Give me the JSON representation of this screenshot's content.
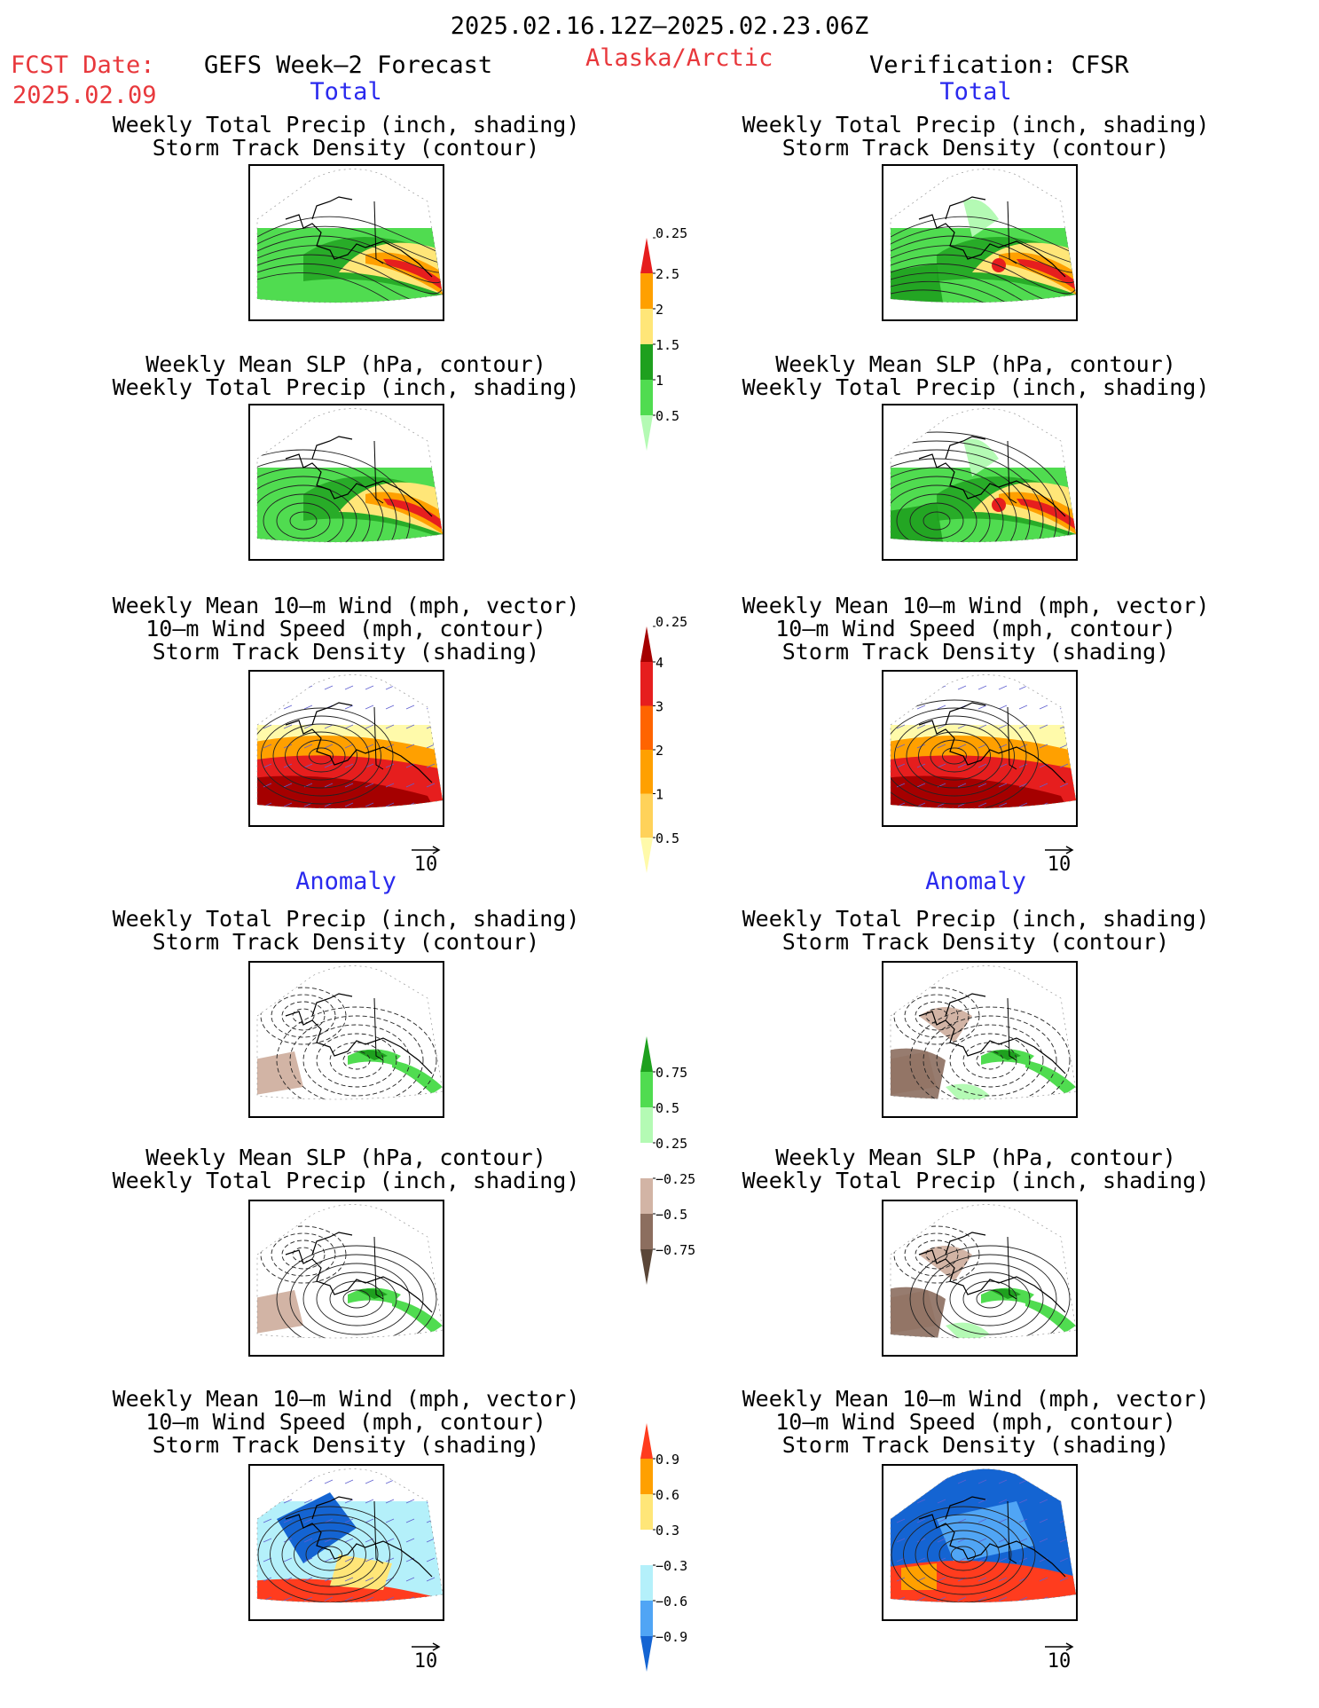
{
  "header": {
    "date_range": "2025.02.16.12Z–2025.02.23.06Z",
    "fcst_label": "FCST Date:",
    "fcst_date": "2025.02.09",
    "model": "GEFS Week–2 Forecast",
    "region": "Alaska/Arctic",
    "verification": "Verification: CFSR"
  },
  "sections": {
    "total": "Total",
    "anomaly": "Anomaly"
  },
  "panel_titles": {
    "precip_storm": [
      "Weekly Total Precip (inch, shading)",
      "Storm Track Density (contour)"
    ],
    "slp_precip": [
      "Weekly Mean SLP (hPa, contour)",
      "Weekly Total Precip (inch, shading)"
    ],
    "wind_storm": [
      "Weekly Mean 10–m Wind (mph, vector)",
      "10–m Wind Speed (mph, contour)",
      "Storm Track Density (shading)"
    ]
  },
  "vector_reference": "10",
  "colors": {
    "precip_total": [
      "#b4fab4",
      "#50dc50",
      "#1ea01e",
      "#ffe678",
      "#ffa000",
      "#e61e1e"
    ],
    "storm_total": [
      "#fffaaa",
      "#ffd25a",
      "#ffa000",
      "#ff6400",
      "#e61e1e",
      "#a50000"
    ],
    "precip_anom": [
      "#5a4638",
      "#8c6e5f",
      "#d2b4a5",
      "#ffffff",
      "#b4fab4",
      "#50dc50",
      "#1ea01e"
    ],
    "storm_anom": [
      "#1464d2",
      "#50a5f5",
      "#b4f0fa",
      "#ffffff",
      "#ffe678",
      "#ffa000",
      "#ff3c1e"
    ]
  },
  "chart_data": [
    {
      "type": "heatmap",
      "name": "colorbar-total-precip",
      "tick_labels": [
        "0.25",
        "0.5",
        "1",
        "1.5",
        "2",
        "2.5"
      ],
      "colors_ref": "precip_total"
    },
    {
      "type": "heatmap",
      "name": "colorbar-total-storm-density",
      "tick_labels": [
        "0.25",
        "0.5",
        "1",
        "2",
        "3",
        "4"
      ],
      "colors_ref": "storm_total"
    },
    {
      "type": "heatmap",
      "name": "colorbar-anomaly-precip",
      "tick_labels": [
        "−0.75",
        "−0.5",
        "−0.25",
        "0.25",
        "0.5",
        "0.75"
      ],
      "colors_ref": "precip_anom"
    },
    {
      "type": "heatmap",
      "name": "colorbar-anomaly-storm-density",
      "tick_labels": [
        "−0.9",
        "−0.6",
        "−0.3",
        "0.3",
        "0.6",
        "0.9"
      ],
      "colors_ref": "storm_anom"
    }
  ]
}
